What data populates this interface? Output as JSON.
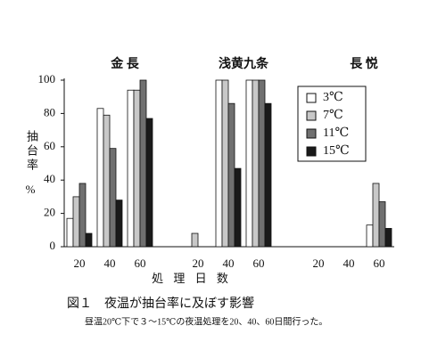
{
  "chart_data": {
    "type": "bar",
    "panels": [
      "金 長",
      "浅黄九条",
      "長 悦"
    ],
    "categories": [
      "20",
      "40",
      "60",
      "20",
      "40",
      "60",
      "20",
      "40",
      "60"
    ],
    "series": [
      {
        "name": "3℃",
        "color": "#ffffff",
        "values": [
          17,
          83,
          94,
          0,
          100,
          100,
          0,
          0,
          13
        ]
      },
      {
        "name": "7℃",
        "color": "#c8c8c8",
        "values": [
          30,
          79,
          94,
          8,
          100,
          100,
          0,
          0,
          38
        ]
      },
      {
        "name": "11℃",
        "color": "#707070",
        "values": [
          38,
          59,
          100,
          0,
          86,
          100,
          0,
          0,
          27
        ]
      },
      {
        "name": "15℃",
        "color": "#1a1a1a",
        "values": [
          8,
          28,
          77,
          0,
          47,
          86,
          0,
          0,
          11
        ]
      }
    ],
    "ylabel": "抽台率",
    "yunit": "%",
    "xlabel": "処 理 日 数",
    "ylim": [
      0,
      100
    ],
    "yticks": [
      0,
      20,
      40,
      60,
      80,
      100
    ],
    "grid": false,
    "legend": "upper right",
    "caption": "図１　夜温が抽台率に及ぼす影響",
    "note": "昼温20℃下で３～15℃の夜温処理を20、40、60日間行った。"
  }
}
